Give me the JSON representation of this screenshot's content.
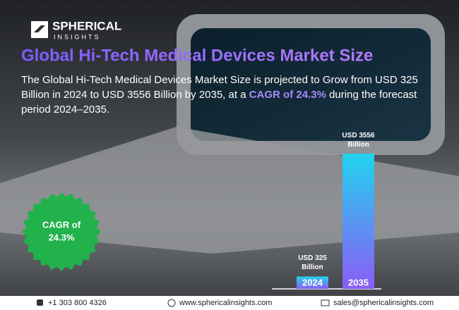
{
  "brand": {
    "name": "SPHERICAL",
    "sub": "INSIGHTS"
  },
  "chart_data": {
    "type": "bar",
    "title": "Global Hi-Tech Medical Devices Market Size",
    "categories": [
      "2024",
      "2035"
    ],
    "values": [
      325,
      3556
    ],
    "value_labels": [
      "USD 325 Billion",
      "USD 3556 Billion"
    ]
  },
  "description": {
    "line1": "The Global Hi-Tech Medical Devices Market Size is projected to Grow from USD 325",
    "line2a": "Billion in 2024 to USD 3556 Billion by 2035, at a ",
    "highlight": "CAGR of 24.3%",
    "line2b": " during the forecast",
    "line3": "period 2024–2035."
  },
  "badge": {
    "line1": "CAGR of",
    "line2": "24.3%"
  },
  "footer": {
    "phone": "+1 303 800 4326",
    "web": "www.sphericalinsights.com",
    "email": "sales@sphericalinsights.com"
  }
}
